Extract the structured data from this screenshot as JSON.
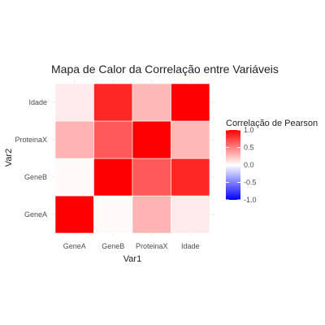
{
  "chart_data": {
    "type": "heatmap",
    "title": "Mapa de Calor da Correlação entre Variáveis",
    "xlabel": "Var1",
    "ylabel": "Var2",
    "x_categories": [
      "GeneA",
      "GeneB",
      "ProteinaX",
      "Idade"
    ],
    "y_categories": [
      "GeneA",
      "GeneB",
      "ProteinaX",
      "Idade"
    ],
    "values": [
      [
        1.0,
        0.02,
        0.3,
        0.08
      ],
      [
        0.02,
        1.0,
        0.65,
        0.85
      ],
      [
        0.3,
        0.65,
        1.0,
        0.28
      ],
      [
        0.08,
        0.85,
        0.28,
        1.0
      ]
    ],
    "legend": {
      "title": "Correlação de Pearson",
      "ticks": [
        "1.0",
        "0.5",
        "0.0",
        "-0.5",
        "-1.0"
      ],
      "tick_values": [
        1.0,
        0.5,
        0.0,
        -0.5,
        -1.0
      ],
      "range": [
        -1,
        1
      ],
      "position": "right"
    },
    "colors": {
      "low": "#0000ff",
      "mid": "#ffffff",
      "high": "#ff0000"
    },
    "grid": true
  }
}
